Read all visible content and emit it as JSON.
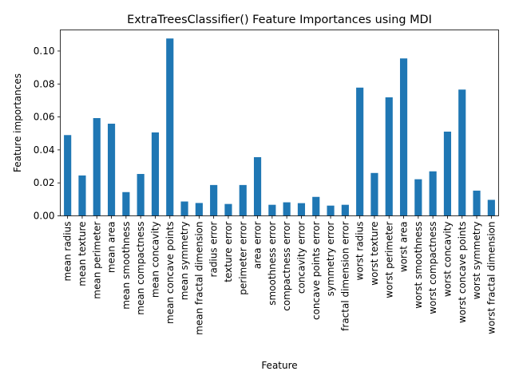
{
  "chart_data": {
    "type": "bar",
    "title": "ExtraTreesClassifier() Feature Importances using MDI",
    "xlabel": "Feature",
    "ylabel": "Feature importances",
    "ylim": [
      0,
      0.1128
    ],
    "yticks": [
      "0.00",
      "0.02",
      "0.04",
      "0.06",
      "0.08",
      "0.10"
    ],
    "bar_color": "#1f77b4",
    "grid": false,
    "legend": "none",
    "categories": [
      "mean radius",
      "mean texture",
      "mean perimeter",
      "mean area",
      "mean smoothness",
      "mean compactness",
      "mean concavity",
      "mean concave points",
      "mean symmetry",
      "mean fractal dimension",
      "radius error",
      "texture error",
      "perimeter error",
      "area error",
      "smoothness error",
      "compactness error",
      "concavity error",
      "concave points error",
      "symmetry error",
      "fractal dimension error",
      "worst radius",
      "worst texture",
      "worst perimeter",
      "worst area",
      "worst smoothness",
      "worst compactness",
      "worst concavity",
      "worst concave points",
      "worst symmetry",
      "worst fractal dimension"
    ],
    "values": [
      0.049,
      0.0245,
      0.0593,
      0.0559,
      0.0144,
      0.0254,
      0.0506,
      0.1076,
      0.0087,
      0.0078,
      0.0187,
      0.0072,
      0.0187,
      0.0356,
      0.0067,
      0.0082,
      0.0077,
      0.0115,
      0.0062,
      0.0067,
      0.0778,
      0.026,
      0.0719,
      0.0955,
      0.0222,
      0.027,
      0.0511,
      0.0766,
      0.0153,
      0.0097
    ]
  }
}
